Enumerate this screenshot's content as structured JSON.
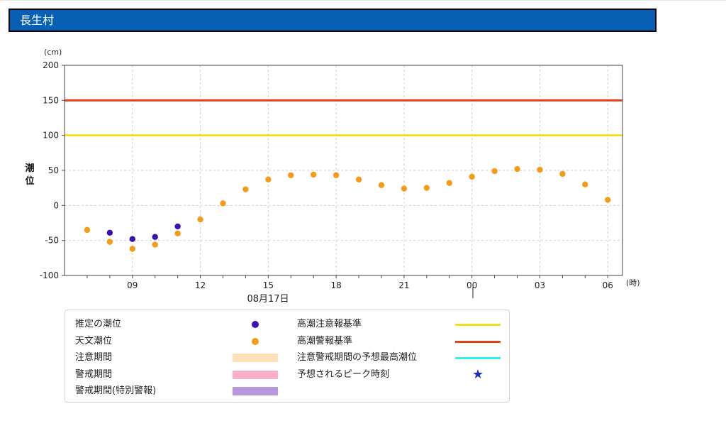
{
  "header": {
    "title": "長生村"
  },
  "chart_data": {
    "type": "scatter",
    "y_unit": "(cm)",
    "ylabel": "潮位",
    "x_unit": "(時)",
    "date_label": "08月17日",
    "ylim": [
      -100,
      200
    ],
    "y_ticks": [
      200,
      150,
      100,
      50,
      0,
      -50,
      -100
    ],
    "x_hours": [
      7,
      8,
      9,
      10,
      11,
      12,
      13,
      14,
      15,
      16,
      17,
      18,
      19,
      20,
      21,
      22,
      23,
      24,
      25,
      26,
      27,
      28,
      29,
      30
    ],
    "x_tick_labels": [
      {
        "hour": 9,
        "label": "09"
      },
      {
        "hour": 12,
        "label": "12"
      },
      {
        "hour": 15,
        "label": "15"
      },
      {
        "hour": 18,
        "label": "18"
      },
      {
        "hour": 21,
        "label": "21"
      },
      {
        "hour": 24,
        "label": "00"
      },
      {
        "hour": 27,
        "label": "03"
      },
      {
        "hour": 30,
        "label": "06"
      }
    ],
    "grid": true,
    "series": [
      {
        "name": "推定の潮位",
        "color": "#3a10b0",
        "points": [
          [
            8,
            -39
          ],
          [
            9,
            -48
          ],
          [
            10,
            -45
          ],
          [
            11,
            -30
          ]
        ]
      },
      {
        "name": "天文潮位",
        "color": "#f29c1a",
        "points": [
          [
            7,
            -35
          ],
          [
            8,
            -52
          ],
          [
            9,
            -62
          ],
          [
            10,
            -56
          ],
          [
            11,
            -40
          ],
          [
            12,
            -20
          ],
          [
            13,
            3
          ],
          [
            14,
            23
          ],
          [
            15,
            37
          ],
          [
            16,
            43
          ],
          [
            17,
            44
          ],
          [
            18,
            43
          ],
          [
            19,
            37
          ],
          [
            20,
            29
          ],
          [
            21,
            24
          ],
          [
            22,
            25
          ],
          [
            23,
            32
          ],
          [
            24,
            41
          ],
          [
            25,
            49
          ],
          [
            26,
            52
          ],
          [
            27,
            51
          ],
          [
            28,
            45
          ],
          [
            29,
            30
          ],
          [
            30,
            8
          ]
        ]
      }
    ],
    "reference_lines": [
      {
        "name": "高潮注意報基準",
        "value": 100,
        "color": "#f0e020"
      },
      {
        "name": "高潮警報基準",
        "value": 150,
        "color": "#e0401a"
      }
    ]
  },
  "legend": {
    "left": [
      {
        "label": "推定の潮位",
        "kind": "dot",
        "color": "#3a10b0"
      },
      {
        "label": "天文潮位",
        "kind": "dot",
        "color": "#f29c1a"
      },
      {
        "label": "注意期間",
        "kind": "swatch",
        "color": "#fde0b8"
      },
      {
        "label": "警戒期間",
        "kind": "swatch",
        "color": "#f8b0c8"
      },
      {
        "label": "警戒期間(特別警報)",
        "kind": "swatch",
        "color": "#b898de"
      }
    ],
    "right": [
      {
        "label": "高潮注意報基準",
        "kind": "line",
        "color": "#f0e020"
      },
      {
        "label": "高潮警報基準",
        "kind": "line",
        "color": "#e0401a"
      },
      {
        "label": "注意警戒期間の予想最高潮位",
        "kind": "line",
        "color": "#30f0f0"
      },
      {
        "label": "予想されるピーク時刻",
        "kind": "star",
        "color": "#1a2cc8",
        "glyph": "★"
      }
    ]
  }
}
